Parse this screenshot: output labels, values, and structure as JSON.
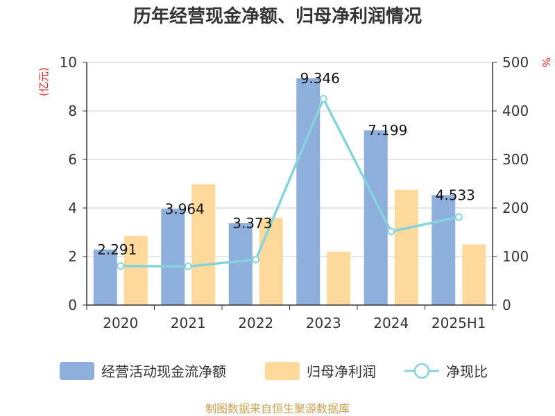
{
  "chart_data": {
    "type": "bar",
    "title": "历年经营现金净额、归母净利润情况",
    "categories": [
      "2020",
      "2021",
      "2022",
      "2023",
      "2024",
      "2025H1"
    ],
    "y_left": {
      "unit": "(亿元)",
      "range": [
        0,
        10
      ],
      "ticks": [
        "0",
        "2",
        "4",
        "6",
        "8",
        "10"
      ]
    },
    "y_right": {
      "unit": "%",
      "range": [
        0,
        500
      ],
      "ticks": [
        "0",
        "100",
        "200",
        "300",
        "400",
        "500"
      ]
    },
    "series": [
      {
        "name": "经营活动现金流净额",
        "type": "bar",
        "axis": "left",
        "color": "#8eaedb",
        "values": [
          2.291,
          3.964,
          3.373,
          9.346,
          7.199,
          4.533
        ],
        "labels": [
          "2.291",
          "3.964",
          "3.373",
          "9.346",
          "7.199",
          "4.533"
        ]
      },
      {
        "name": "归母净利润",
        "type": "bar",
        "axis": "left",
        "color": "#fdd99b",
        "values": [
          2.85,
          4.98,
          3.6,
          2.2,
          4.75,
          2.5
        ]
      },
      {
        "name": "净现比",
        "type": "line",
        "axis": "right",
        "color": "#86d3dc",
        "values": [
          80.6,
          79.6,
          93.7,
          425,
          151.6,
          181.3
        ]
      }
    ],
    "grid": true,
    "legend_position": "bottom"
  },
  "source_text": "制图数据来自恒生聚源数据库"
}
